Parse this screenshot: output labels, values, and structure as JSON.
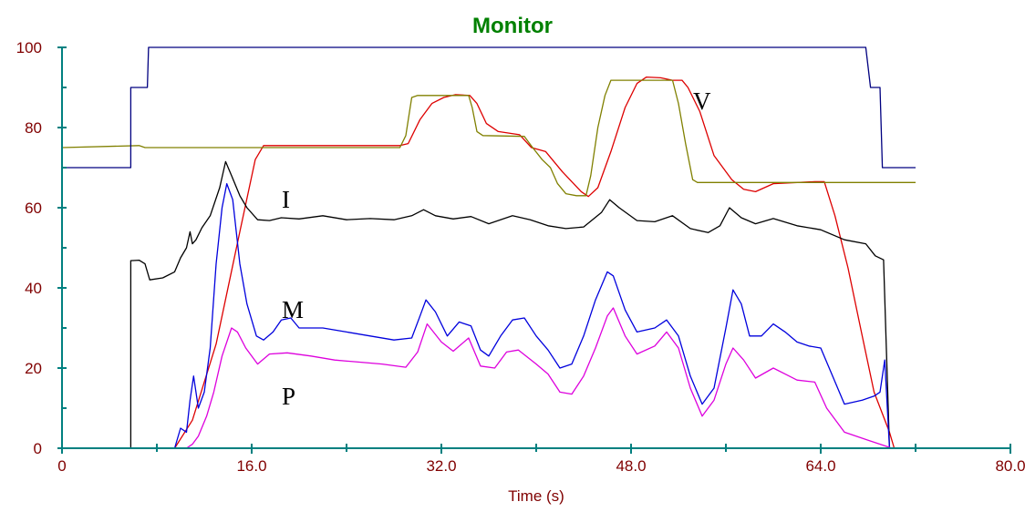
{
  "chart_data": {
    "type": "line",
    "title": "Monitor",
    "xlabel": "Time (s)",
    "ylabel": "",
    "xlim": [
      0,
      80
    ],
    "ylim": [
      0,
      100
    ],
    "x_ticks": [
      "0",
      "16.0",
      "32.0",
      "48.0",
      "64.0",
      "80.0"
    ],
    "y_ticks": [
      "0",
      "20",
      "40",
      "60",
      "80",
      "100"
    ],
    "grid": false,
    "legend": "none",
    "series": [
      {
        "name": "V",
        "color": "#dd0000",
        "points": [
          [
            0,
            0
          ],
          [
            9.5,
            0
          ],
          [
            11,
            7
          ],
          [
            13,
            26
          ],
          [
            15,
            54
          ],
          [
            16.3,
            72
          ],
          [
            17,
            75.5
          ],
          [
            18,
            75.5
          ],
          [
            28.5,
            75.5
          ],
          [
            29.2,
            76
          ],
          [
            30.2,
            82
          ],
          [
            31.2,
            86
          ],
          [
            32.2,
            87.5
          ],
          [
            33.2,
            88.2
          ],
          [
            34.4,
            88
          ],
          [
            35,
            86
          ],
          [
            35.8,
            81
          ],
          [
            36.8,
            79
          ],
          [
            38.6,
            78.2
          ],
          [
            39.6,
            75
          ],
          [
            40.8,
            74
          ],
          [
            42.2,
            69
          ],
          [
            43.8,
            64
          ],
          [
            44.4,
            62.8
          ],
          [
            45.2,
            65
          ],
          [
            46.3,
            74
          ],
          [
            47.5,
            85
          ],
          [
            48.5,
            91
          ],
          [
            49.3,
            92.6
          ],
          [
            50.5,
            92.4
          ],
          [
            51.5,
            91.8
          ],
          [
            52.3,
            91.8
          ],
          [
            52.8,
            90
          ],
          [
            53.8,
            84
          ],
          [
            55,
            73
          ],
          [
            56.5,
            67
          ],
          [
            57.5,
            64.6
          ],
          [
            58.5,
            64
          ],
          [
            60,
            66
          ],
          [
            63.5,
            66.5
          ],
          [
            64.3,
            66.5
          ],
          [
            65.2,
            58
          ],
          [
            66.3,
            45
          ],
          [
            67.5,
            28
          ],
          [
            68.5,
            14
          ],
          [
            69.8,
            4
          ],
          [
            70.2,
            0
          ],
          [
            72,
            0
          ]
        ]
      },
      {
        "name": "",
        "color": "#808000",
        "points": [
          [
            0,
            75
          ],
          [
            6.5,
            75.5
          ],
          [
            7,
            75
          ],
          [
            28.5,
            75
          ],
          [
            29,
            78
          ],
          [
            29.5,
            87.5
          ],
          [
            30,
            88
          ],
          [
            34.3,
            88
          ],
          [
            34.6,
            85
          ],
          [
            35,
            79
          ],
          [
            35.5,
            78
          ],
          [
            39,
            77.8
          ],
          [
            39.7,
            75
          ],
          [
            40.5,
            72
          ],
          [
            41.2,
            70
          ],
          [
            41.8,
            66
          ],
          [
            42.5,
            63.5
          ],
          [
            43.4,
            63
          ],
          [
            44.2,
            63
          ],
          [
            44.6,
            68
          ],
          [
            45.2,
            80
          ],
          [
            45.8,
            88
          ],
          [
            46.3,
            91.8
          ],
          [
            51.5,
            91.8
          ],
          [
            52,
            86
          ],
          [
            52.6,
            76
          ],
          [
            53.2,
            67
          ],
          [
            53.6,
            66.3
          ],
          [
            72,
            66.3
          ]
        ]
      },
      {
        "name": "",
        "color": "#000080",
        "points": [
          [
            0,
            70
          ],
          [
            5.8,
            70
          ],
          [
            5.8,
            90
          ],
          [
            6.5,
            90
          ],
          [
            7.2,
            90
          ],
          [
            7.3,
            100
          ],
          [
            67.8,
            100
          ],
          [
            68.2,
            90
          ],
          [
            69,
            90
          ],
          [
            69.2,
            70
          ],
          [
            72,
            70
          ]
        ]
      },
      {
        "name": "I",
        "color": "#000000",
        "points": [
          [
            0,
            0
          ],
          [
            5.8,
            0
          ],
          [
            5.8,
            46.8
          ],
          [
            6.5,
            46.9
          ],
          [
            7,
            46
          ],
          [
            7.4,
            42
          ],
          [
            8.5,
            42.5
          ],
          [
            9.5,
            44
          ],
          [
            10,
            47.5
          ],
          [
            10.5,
            50
          ],
          [
            10.8,
            54
          ],
          [
            11,
            51
          ],
          [
            11.3,
            52
          ],
          [
            11.8,
            55
          ],
          [
            12.5,
            58
          ],
          [
            13.3,
            65
          ],
          [
            13.8,
            71.5
          ],
          [
            14.3,
            68
          ],
          [
            15,
            63
          ],
          [
            15.6,
            60
          ],
          [
            16.5,
            57
          ],
          [
            17.5,
            56.8
          ],
          [
            18.5,
            57.5
          ],
          [
            20,
            57.2
          ],
          [
            22,
            58
          ],
          [
            24,
            57
          ],
          [
            26,
            57.3
          ],
          [
            28,
            57
          ],
          [
            29.5,
            58
          ],
          [
            30.5,
            59.5
          ],
          [
            31.5,
            58
          ],
          [
            33,
            57.2
          ],
          [
            34.5,
            57.8
          ],
          [
            36,
            56
          ],
          [
            38,
            58
          ],
          [
            39.5,
            57
          ],
          [
            41,
            55.5
          ],
          [
            42.5,
            54.8
          ],
          [
            44,
            55.2
          ],
          [
            45.5,
            58.8
          ],
          [
            46.2,
            62
          ],
          [
            47,
            60
          ],
          [
            48.5,
            56.8
          ],
          [
            50,
            56.5
          ],
          [
            51.5,
            58
          ],
          [
            53,
            54.8
          ],
          [
            54.5,
            53.8
          ],
          [
            55.5,
            55.5
          ],
          [
            56.3,
            60
          ],
          [
            57.3,
            57.5
          ],
          [
            58.5,
            56
          ],
          [
            60,
            57.3
          ],
          [
            62,
            55.5
          ],
          [
            64,
            54.5
          ],
          [
            66,
            52
          ],
          [
            67.8,
            51
          ],
          [
            68.6,
            48
          ],
          [
            69.3,
            47
          ],
          [
            69.8,
            0
          ],
          [
            72,
            0
          ]
        ]
      },
      {
        "name": "M",
        "color": "#0000dd",
        "points": [
          [
            0,
            0
          ],
          [
            9.5,
            0
          ],
          [
            10,
            5
          ],
          [
            10.5,
            4
          ],
          [
            10.8,
            12
          ],
          [
            11.1,
            18
          ],
          [
            11.5,
            10
          ],
          [
            12,
            14
          ],
          [
            12.5,
            25
          ],
          [
            13,
            46
          ],
          [
            13.5,
            60
          ],
          [
            13.9,
            66
          ],
          [
            14.4,
            62
          ],
          [
            15,
            46
          ],
          [
            15.6,
            36
          ],
          [
            16.4,
            28
          ],
          [
            17,
            27
          ],
          [
            17.8,
            29
          ],
          [
            18.5,
            32
          ],
          [
            19.3,
            32.5
          ],
          [
            20,
            30
          ],
          [
            22,
            30
          ],
          [
            24,
            29
          ],
          [
            26,
            28
          ],
          [
            28,
            27
          ],
          [
            29.5,
            27.5
          ],
          [
            30.2,
            33
          ],
          [
            30.7,
            37
          ],
          [
            31.5,
            34
          ],
          [
            32.5,
            28
          ],
          [
            33.5,
            31.5
          ],
          [
            34.5,
            30.5
          ],
          [
            35.3,
            24.5
          ],
          [
            36,
            23
          ],
          [
            37,
            28
          ],
          [
            38,
            32
          ],
          [
            39,
            32.5
          ],
          [
            40,
            28
          ],
          [
            41,
            24.5
          ],
          [
            42,
            20
          ],
          [
            43,
            21
          ],
          [
            44,
            28
          ],
          [
            45,
            37
          ],
          [
            46,
            44
          ],
          [
            46.5,
            43
          ],
          [
            47.5,
            34.5
          ],
          [
            48.5,
            29
          ],
          [
            50,
            30
          ],
          [
            51,
            32
          ],
          [
            52,
            28
          ],
          [
            53,
            18
          ],
          [
            54,
            11
          ],
          [
            55,
            15
          ],
          [
            56,
            30
          ],
          [
            56.6,
            39.5
          ],
          [
            57.3,
            36
          ],
          [
            58,
            28
          ],
          [
            59,
            28
          ],
          [
            60,
            31
          ],
          [
            61,
            29
          ],
          [
            62,
            26.5
          ],
          [
            63,
            25.5
          ],
          [
            64,
            25
          ],
          [
            65,
            18
          ],
          [
            66,
            11
          ],
          [
            67.5,
            12
          ],
          [
            68.5,
            13
          ],
          [
            69,
            14
          ],
          [
            69.4,
            22
          ],
          [
            69.8,
            0
          ],
          [
            72,
            0
          ]
        ]
      },
      {
        "name": "P",
        "color": "#dd00dd",
        "points": [
          [
            0,
            0
          ],
          [
            10.5,
            0
          ],
          [
            11,
            1
          ],
          [
            11.5,
            3
          ],
          [
            12.2,
            8
          ],
          [
            12.8,
            14
          ],
          [
            13.5,
            23
          ],
          [
            14.3,
            30
          ],
          [
            14.8,
            29
          ],
          [
            15.5,
            25
          ],
          [
            16.5,
            21
          ],
          [
            17.5,
            23.5
          ],
          [
            19,
            23.8
          ],
          [
            21,
            23
          ],
          [
            23,
            22
          ],
          [
            25,
            21.5
          ],
          [
            27,
            21
          ],
          [
            29,
            20.2
          ],
          [
            30,
            24
          ],
          [
            30.8,
            31
          ],
          [
            32,
            26.5
          ],
          [
            33,
            24.2
          ],
          [
            34.3,
            27.5
          ],
          [
            35.3,
            20.5
          ],
          [
            36.5,
            20
          ],
          [
            37.5,
            24
          ],
          [
            38.5,
            24.5
          ],
          [
            40,
            21
          ],
          [
            41,
            18.5
          ],
          [
            42,
            14
          ],
          [
            43,
            13.5
          ],
          [
            44,
            18
          ],
          [
            45,
            25
          ],
          [
            46,
            33
          ],
          [
            46.5,
            35
          ],
          [
            47.5,
            28
          ],
          [
            48.5,
            23.5
          ],
          [
            50,
            25.5
          ],
          [
            51,
            29
          ],
          [
            52,
            25
          ],
          [
            53,
            15
          ],
          [
            54,
            8
          ],
          [
            55,
            12
          ],
          [
            56,
            21
          ],
          [
            56.6,
            25
          ],
          [
            57.5,
            22
          ],
          [
            58.5,
            17.5
          ],
          [
            60,
            20
          ],
          [
            61,
            18.5
          ],
          [
            62,
            17
          ],
          [
            63.5,
            16.5
          ],
          [
            64.5,
            10
          ],
          [
            66,
            4
          ],
          [
            68,
            2
          ],
          [
            69.5,
            0.5
          ],
          [
            70,
            0
          ],
          [
            72,
            0
          ]
        ]
      }
    ],
    "annotations": [
      "V",
      "I",
      "M",
      "P"
    ]
  }
}
